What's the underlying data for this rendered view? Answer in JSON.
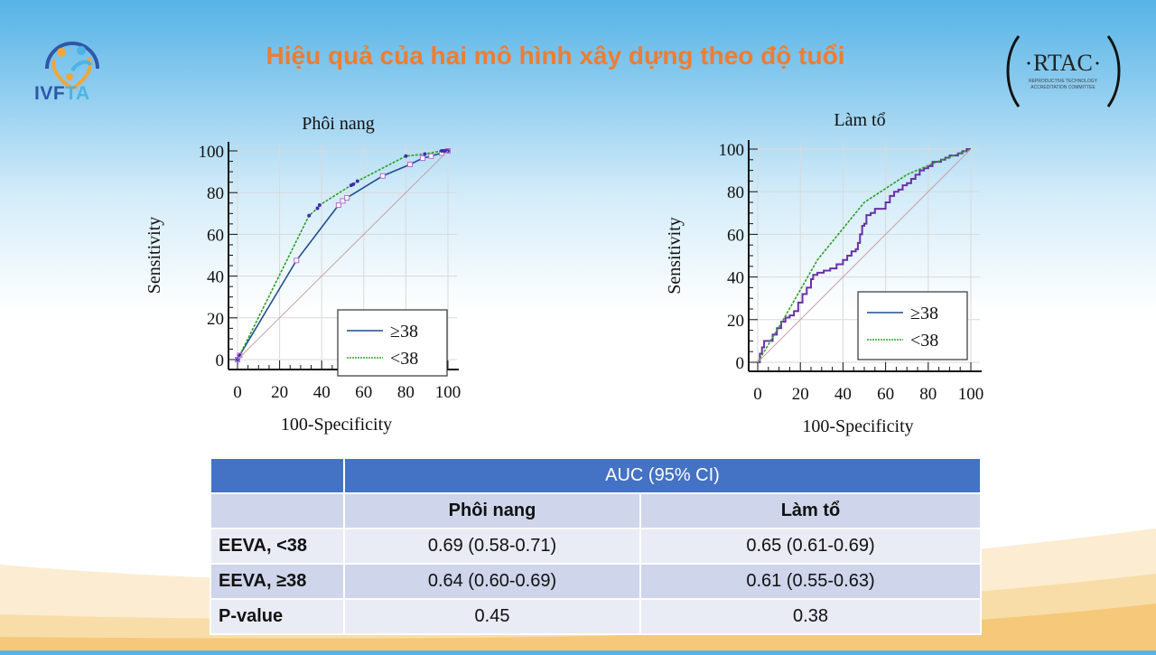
{
  "slide": {
    "title": "Hiệu quả của hai mô hình xây dựng theo độ tuổi",
    "logo_left": {
      "icon": "ivfta-logo-icon",
      "text_part1": "IVF",
      "text_part2": "TA"
    },
    "logo_right": {
      "icon": "rtac-logo-icon",
      "name": "RTAC",
      "sub1": "REPRODUCTIVE TECHNOLOGY",
      "sub2": "ACCREDITATION COMMITTEE"
    },
    "colors": {
      "title": "#ee7d32",
      "table_header": "#4472c4",
      "series_ge38": "#1f4e8c",
      "series_lt38": "#2ca02c",
      "markers": "#7a3fb0"
    }
  },
  "chart_data": [
    {
      "type": "line",
      "title": "Phôi nang",
      "xlabel": "100-Specificity",
      "ylabel": "Sensitivity",
      "xlim": [
        0,
        100
      ],
      "ylim": [
        0,
        100
      ],
      "xticks": [
        "0",
        "20",
        "40",
        "60",
        "80",
        "100"
      ],
      "yticks": [
        "0",
        "20",
        "40",
        "60",
        "80",
        "100"
      ],
      "grid": true,
      "legend_position": "bottom-right",
      "series": [
        {
          "name": "≥38",
          "style": "solid",
          "x": [
            0,
            1,
            28,
            48,
            50,
            52,
            69,
            82,
            88,
            92,
            97,
            100
          ],
          "y": [
            0,
            2,
            47.5,
            74,
            76,
            77.5,
            88,
            93.5,
            96.5,
            97.5,
            99,
            100
          ]
        },
        {
          "name": "<38",
          "style": "dashed",
          "x": [
            0,
            1,
            34,
            38,
            39,
            54,
            55,
            57,
            80,
            89,
            97,
            98,
            99,
            100
          ],
          "y": [
            0,
            2,
            69,
            72.5,
            74,
            83.5,
            84,
            85.5,
            97.5,
            98.5,
            100,
            100,
            100,
            100
          ]
        },
        {
          "name": "reference",
          "style": "diagonal",
          "x": [
            0,
            100
          ],
          "y": [
            0,
            100
          ]
        }
      ]
    },
    {
      "type": "line",
      "title": "Làm tổ",
      "xlabel": "100-Specificity",
      "ylabel": "Sensitivity",
      "xlim": [
        0,
        100
      ],
      "ylim": [
        0,
        100
      ],
      "xticks": [
        "0",
        "20",
        "40",
        "60",
        "80",
        "100"
      ],
      "yticks": [
        "0",
        "20",
        "40",
        "60",
        "80",
        "100"
      ],
      "grid": true,
      "legend_position": "bottom-right",
      "series": [
        {
          "name": "≥38",
          "style": "solid-step",
          "x": [
            0,
            1,
            2,
            3,
            5,
            7,
            9,
            11,
            13,
            15,
            17,
            19,
            21,
            23,
            25,
            26,
            28,
            31,
            34,
            37,
            40,
            42,
            44,
            46,
            47,
            48,
            49,
            50,
            51,
            53,
            55,
            58,
            60,
            62,
            64,
            66,
            68,
            70,
            72,
            74,
            76,
            78,
            80,
            82,
            84,
            86,
            88,
            90,
            92,
            94,
            96,
            98,
            100
          ],
          "y": [
            0,
            4,
            7,
            10,
            10,
            13,
            16,
            19,
            21,
            22,
            24,
            28,
            32,
            35,
            39,
            41,
            42,
            43,
            44,
            46,
            48,
            50,
            52,
            53,
            56,
            60,
            64,
            65,
            69,
            70,
            72,
            72,
            75,
            78,
            80,
            81,
            83,
            84,
            86,
            88,
            90,
            91,
            92,
            94,
            94,
            95,
            96,
            97,
            97,
            98,
            99,
            100,
            100
          ]
        },
        {
          "name": "<38",
          "style": "dashed",
          "x": [
            0,
            12,
            28,
            50,
            70,
            84,
            100
          ],
          "y": [
            0,
            20,
            48,
            75,
            88,
            94,
            100
          ]
        },
        {
          "name": "reference",
          "style": "diagonal",
          "x": [
            0,
            100
          ],
          "y": [
            0,
            100
          ]
        }
      ]
    }
  ],
  "table": {
    "header": {
      "corner": "",
      "span_label": "AUC (95% CI)"
    },
    "columns": [
      "",
      "Phôi nang",
      "Làm tổ"
    ],
    "rows": [
      {
        "label": "EEVA, <38",
        "values": [
          "0.69 (0.58-0.71)",
          "0.65 (0.61-0.69)"
        ]
      },
      {
        "label": "EEVA, ≥38",
        "values": [
          "0.64 (0.60-0.69)",
          "0.61 (0.55-0.63)"
        ]
      },
      {
        "label": "P-value",
        "values": [
          "0.45",
          "0.38"
        ]
      }
    ]
  }
}
